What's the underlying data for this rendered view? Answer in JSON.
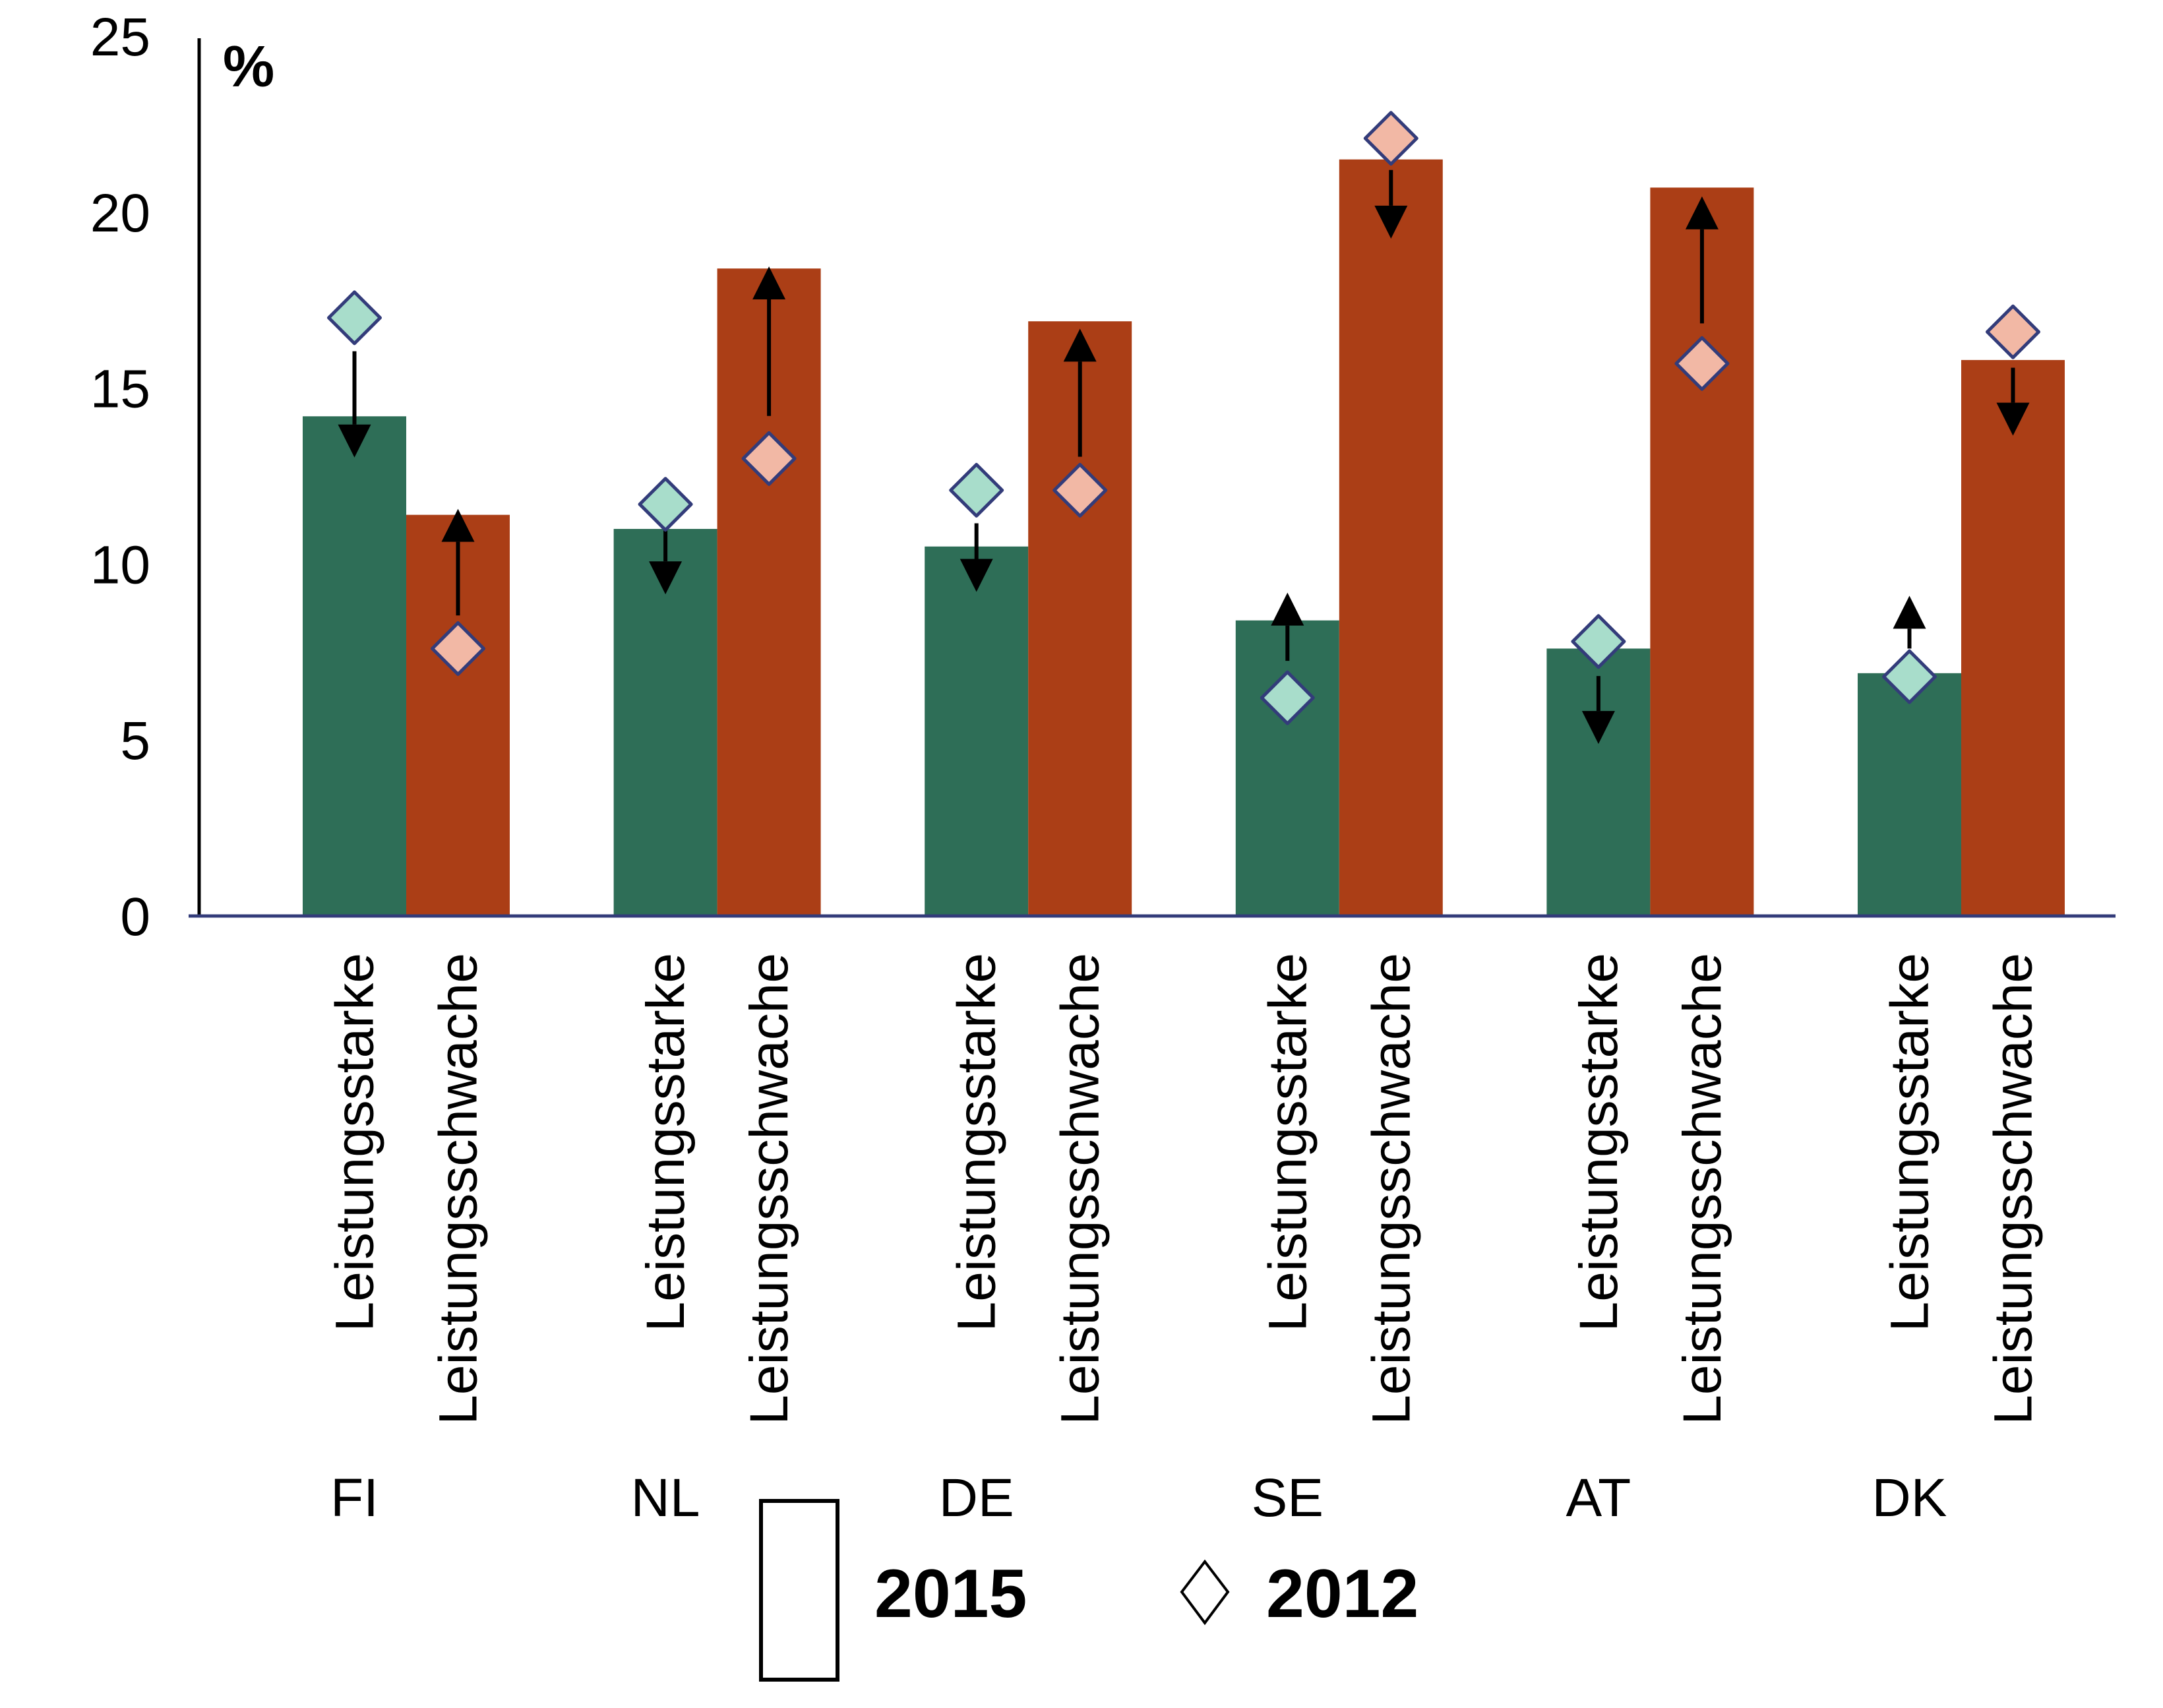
{
  "chart_data": {
    "type": "bar",
    "title": "",
    "ylabel": "%",
    "xlabel": "",
    "ylim": [
      0,
      25
    ],
    "yticks": [
      "0",
      "5",
      "10",
      "15",
      "20",
      "25"
    ],
    "grid": false,
    "countries": [
      "FI",
      "NL",
      "DE",
      "SE",
      "AT",
      "DK"
    ],
    "subcategories": [
      "Leistungsstarke",
      "Leistungsschwache"
    ],
    "series": [
      {
        "name": "2015",
        "mark": "bar",
        "values": {
          "Leistungsstarke": [
            14.2,
            11.0,
            10.5,
            8.4,
            7.6,
            6.9
          ],
          "Leistungsschwache": [
            11.4,
            18.4,
            16.9,
            21.5,
            20.7,
            15.8
          ]
        }
      },
      {
        "name": "2012",
        "mark": "diamond",
        "values": {
          "Leistungsstarke": [
            17.0,
            11.7,
            12.1,
            6.2,
            7.8,
            6.8
          ],
          "Leistungsschwache": [
            7.6,
            13.0,
            12.1,
            22.1,
            15.7,
            16.6
          ]
        }
      }
    ],
    "change_arrows": {
      "Leistungsstarke": [
        {
          "direction": "down",
          "from": 16.05,
          "to": 13.03
        },
        {
          "direction": "down",
          "from": 10.96,
          "to": 9.14
        },
        {
          "direction": "down",
          "from": 11.16,
          "to": 9.21
        },
        {
          "direction": "up",
          "from": 7.25,
          "to": 9.19
        },
        {
          "direction": "down",
          "from": 6.82,
          "to": 4.89
        },
        {
          "direction": "up",
          "from": 7.6,
          "to": 9.1
        }
      ],
      "Leistungsschwache": [
        {
          "direction": "up",
          "from": 8.54,
          "to": 11.57
        },
        {
          "direction": "up",
          "from": 14.21,
          "to": 18.46
        },
        {
          "direction": "up",
          "from": 13.05,
          "to": 16.69
        },
        {
          "direction": "down",
          "from": 21.2,
          "to": 19.25
        },
        {
          "direction": "up",
          "from": 16.84,
          "to": 20.45
        },
        {
          "direction": "down",
          "from": 15.58,
          "to": 13.65
        }
      ]
    },
    "legend": {
      "placement": "bottom-center",
      "entries": [
        {
          "label": "2015",
          "symbol": "bar-outline"
        },
        {
          "label": "2012",
          "symbol": "diamond-outline"
        }
      ]
    },
    "colors": {
      "Leistungsstarke_bar": "#2E6E57",
      "Leistungsschwache_bar": "#AB3E16",
      "Leistungsstarke_diamond": "#A8DDCB",
      "Leistungsschwache_diamond": "#F2B8A5",
      "diamond_border": "#333C7A",
      "x_axis": "#333C7A",
      "y_axis": "#000000",
      "arrow": "#000000"
    }
  }
}
